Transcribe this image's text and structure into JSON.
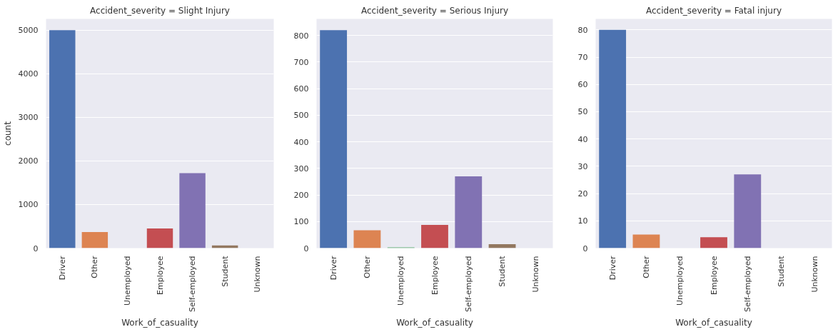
{
  "chart_data": [
    {
      "type": "bar",
      "title": "Accident_severity = Slight Injury",
      "xlabel": "Work_of_casuality",
      "ylabel": "count",
      "categories": [
        "Driver",
        "Other",
        "Unemployed",
        "Employee",
        "Self-employed",
        "Student",
        "Unknown"
      ],
      "values": [
        5000,
        370,
        null,
        450,
        1720,
        60,
        null
      ],
      "colors": [
        "#4c72b0",
        "#dd8452",
        "#55a868",
        "#c44e52",
        "#8172b3",
        "#937860",
        "#da8bc3"
      ],
      "ylim": [
        0,
        5260
      ],
      "yticks": [
        0,
        1000,
        2000,
        3000,
        4000,
        5000
      ],
      "grid": "y"
    },
    {
      "type": "bar",
      "title": "Accident_severity = Serious Injury",
      "xlabel": "Work_of_casuality",
      "categories": [
        "Driver",
        "Other",
        "Unemployed",
        "Employee",
        "Self-employed",
        "Student",
        "Unknown"
      ],
      "values": [
        820,
        67,
        3,
        87,
        270,
        15,
        null
      ],
      "colors": [
        "#4c72b0",
        "#dd8452",
        "#55a868",
        "#c44e52",
        "#8172b3",
        "#937860",
        "#da8bc3"
      ],
      "ylim": [
        0,
        862
      ],
      "yticks": [
        0,
        100,
        200,
        300,
        400,
        500,
        600,
        700,
        800
      ],
      "grid": "y"
    },
    {
      "type": "bar",
      "title": "Accident_severity = Fatal injury",
      "xlabel": "Work_of_casuality",
      "categories": [
        "Driver",
        "Other",
        "Unemployed",
        "Employee",
        "Self-employed",
        "Student",
        "Unknown"
      ],
      "values": [
        80,
        5,
        0,
        4,
        27,
        0,
        0
      ],
      "colors": [
        "#4c72b0",
        "#dd8452",
        "#55a868",
        "#c44e52",
        "#8172b3",
        "#937860",
        "#da8bc3"
      ],
      "ylim": [
        0,
        84
      ],
      "yticks": [
        0,
        10,
        20,
        30,
        40,
        50,
        60,
        70,
        80
      ],
      "grid": "y"
    }
  ]
}
